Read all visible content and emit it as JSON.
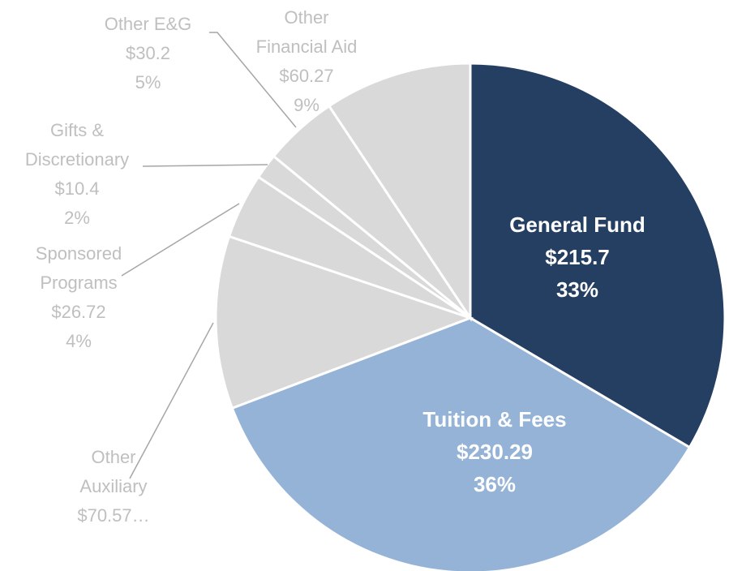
{
  "chart_data": {
    "type": "pie",
    "categories": [
      "General Fund",
      "Tuition & Fees",
      "Other Auxiliary",
      "Sponsored Programs",
      "Gifts & Discretionary",
      "Other E&G",
      "Other Financial Aid"
    ],
    "values": [
      215.7,
      230.29,
      70.57,
      26.72,
      10.4,
      30.2,
      60.27
    ],
    "value_labels": [
      "$215.7",
      "$230.29",
      "$70.57…",
      "$26.72",
      "$10.4",
      "$30.2",
      "$60.27"
    ],
    "percent_labels": [
      "33%",
      "36%",
      null,
      "4%",
      "2%",
      "5%",
      "9%"
    ],
    "colors": [
      "#253F62",
      "#95B3D7",
      "#D9D9D9",
      "#D9D9D9",
      "#D9D9D9",
      "#D9D9D9",
      "#D9D9D9"
    ]
  }
}
